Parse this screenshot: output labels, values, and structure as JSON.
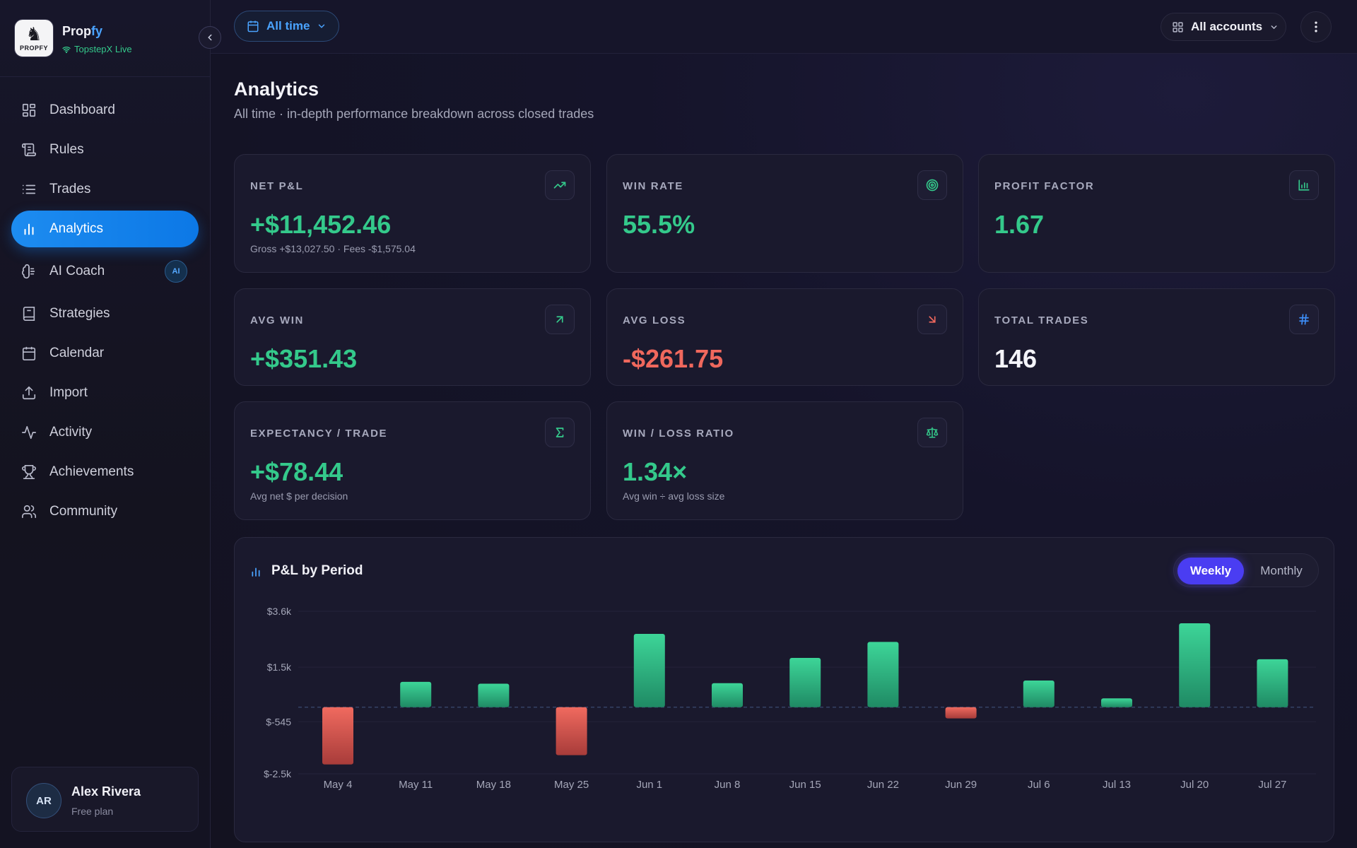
{
  "brand": {
    "name_a": "Prop",
    "name_b": "fy",
    "logo_word": "PROPFY",
    "account_status": "TopstepX Live"
  },
  "nav": [
    {
      "label": "Dashboard",
      "icon": "dashboard-icon"
    },
    {
      "label": "Rules",
      "icon": "rules-icon"
    },
    {
      "label": "Trades",
      "icon": "list-icon"
    },
    {
      "label": "Analytics",
      "icon": "bar-chart-icon",
      "active": true
    },
    {
      "label": "AI Coach",
      "icon": "brain-icon",
      "badge": "AI"
    },
    {
      "label": "Strategies",
      "icon": "book-icon"
    },
    {
      "label": "Calendar",
      "icon": "calendar-icon"
    },
    {
      "label": "Import",
      "icon": "upload-icon"
    },
    {
      "label": "Activity",
      "icon": "activity-icon"
    },
    {
      "label": "Achievements",
      "icon": "trophy-icon"
    },
    {
      "label": "Community",
      "icon": "users-icon"
    }
  ],
  "user": {
    "initials": "AR",
    "name": "Alex Rivera",
    "plan": "Free plan"
  },
  "topbar": {
    "time_filter": "All time",
    "accounts": "All accounts"
  },
  "page": {
    "title": "Analytics",
    "subtitle": "All time · in-depth performance breakdown across closed trades"
  },
  "cards": {
    "net_pnl": {
      "label": "NET P&L",
      "value": "+$11,452.46",
      "note": "Gross +$13,027.50 · Fees -$1,575.04"
    },
    "win_rate": {
      "label": "WIN RATE",
      "value": "55.5%"
    },
    "profit_factor": {
      "label": "PROFIT FACTOR",
      "value": "1.67"
    },
    "avg_win": {
      "label": "AVG WIN",
      "value": "+$351.43"
    },
    "avg_loss": {
      "label": "AVG LOSS",
      "value": "-$261.75"
    },
    "total_trades": {
      "label": "TOTAL TRADES",
      "value": "146"
    },
    "expectancy": {
      "label": "EXPECTANCY / TRADE",
      "value": "+$78.44",
      "note": "Avg net $ per decision"
    },
    "win_loss_ratio": {
      "label": "WIN / LOSS RATIO",
      "value": "1.34×",
      "note": "Avg win ÷ avg loss size"
    }
  },
  "colors": {
    "positive": "#34c98b",
    "negative": "#f0685d",
    "accent": "#1d8cf0",
    "toggle": "#4a3df2"
  },
  "chart": {
    "title": "P&L by Period",
    "toggle_on": "Weekly",
    "toggle_off": "Monthly"
  },
  "chart_data": {
    "type": "bar",
    "title": "P&L by Period",
    "categories": [
      "May 4",
      "May 11",
      "May 18",
      "May 25",
      "Jun 1",
      "Jun 8",
      "Jun 15",
      "Jun 22",
      "Jun 29",
      "Jul 6",
      "Jul 13",
      "Jul 20",
      "Jul 27"
    ],
    "values": [
      -2150,
      950,
      880,
      -1800,
      2750,
      900,
      1850,
      2450,
      -420,
      1000,
      330,
      3150,
      1800
    ],
    "ylim": [
      -2500,
      3600
    ],
    "yticks": [
      "$3.6k",
      "$1.5k",
      "$-545",
      "$-2.5k"
    ],
    "ytick_values": [
      3600,
      1500,
      -545,
      -2500
    ],
    "grid": true
  }
}
